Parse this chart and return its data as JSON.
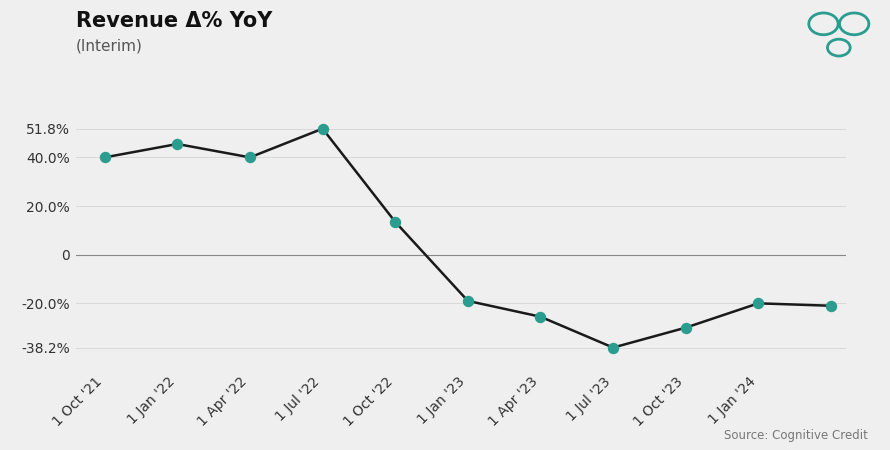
{
  "title": "Revenue Δ% YoY",
  "subtitle": "(Interim)",
  "source": "Source: Cognitive Credit",
  "background_color": "#efefef",
  "line_color": "#1a1a1a",
  "marker_color": "#2a9d8f",
  "x_values": [
    0,
    1,
    2,
    3,
    4,
    5,
    6,
    7,
    8,
    9,
    10
  ],
  "y_values": [
    40.0,
    45.5,
    40.0,
    51.8,
    13.5,
    -19.0,
    -25.5,
    -38.2,
    -30.0,
    -20.0,
    -21.0
  ],
  "ytick_values": [
    51.8,
    40.0,
    20.0,
    0,
    -20.0,
    -38.2
  ],
  "ytick_labels": [
    "51.8%",
    "40.0%",
    "20.0%",
    "0",
    "-20.0%",
    "-38.2%"
  ],
  "xtick_labels": [
    "1 Oct '21",
    "1 Jan '22",
    "1 Apr '22",
    "1 Jul '22",
    "1 Oct '22",
    "1 Jan '23",
    "1 Apr '23",
    "1 Jul '23",
    "1 Oct '23",
    "1 Jan '24"
  ],
  "ylim_min": -47,
  "ylim_max": 64,
  "title_fontsize": 15,
  "subtitle_fontsize": 11,
  "tick_fontsize": 10,
  "source_fontsize": 8.5,
  "grid_color": "#d8d8d8",
  "zero_line_color": "#888888"
}
